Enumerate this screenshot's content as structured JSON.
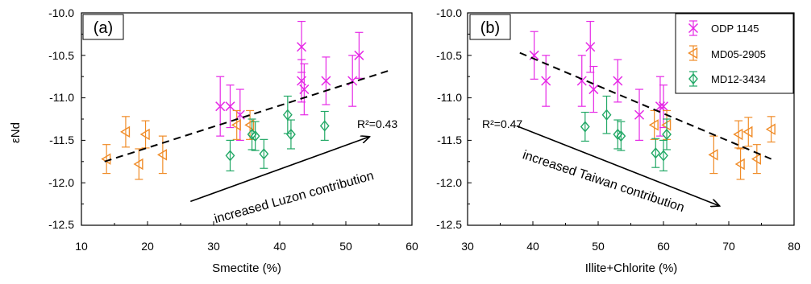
{
  "chart_data": [
    {
      "type": "scatter",
      "panel_label": "(a)",
      "xlabel": "Smectite (%)",
      "ylabel": "εNd",
      "xlim": [
        10,
        60
      ],
      "ylim": [
        -12.5,
        -10.0
      ],
      "xticks": [
        "10",
        "20",
        "30",
        "40",
        "50",
        "60"
      ],
      "yticks": [
        "-10.0",
        "-10.5",
        "-11.0",
        "-11.5",
        "-12.0",
        "-12.5"
      ],
      "series": [
        {
          "name": "ODP 1145",
          "color": "#e629e6",
          "marker": "x",
          "points": [
            {
              "x": 31.0,
              "y": -11.1,
              "err": 0.35
            },
            {
              "x": 32.5,
              "y": -11.1,
              "err": 0.25
            },
            {
              "x": 34.0,
              "y": -11.2,
              "err": 0.3
            },
            {
              "x": 43.3,
              "y": -10.4,
              "err": 0.3
            },
            {
              "x": 43.3,
              "y": -10.8,
              "err": 0.25
            },
            {
              "x": 43.7,
              "y": -10.9,
              "err": 0.3
            },
            {
              "x": 47.0,
              "y": -10.8,
              "err": 0.28
            },
            {
              "x": 51.0,
              "y": -10.8,
              "err": 0.3
            },
            {
              "x": 52.0,
              "y": -10.5,
              "err": 0.27
            }
          ]
        },
        {
          "name": "MD05-2905",
          "color": "#f08c28",
          "marker": "tri-left",
          "points": [
            {
              "x": 13.8,
              "y": -11.72,
              "err": 0.17
            },
            {
              "x": 16.7,
              "y": -11.4,
              "err": 0.18
            },
            {
              "x": 18.7,
              "y": -11.78,
              "err": 0.18
            },
            {
              "x": 19.7,
              "y": -11.43,
              "err": 0.16
            },
            {
              "x": 22.3,
              "y": -11.67,
              "err": 0.22
            },
            {
              "x": 33.5,
              "y": -11.32,
              "err": 0.17
            },
            {
              "x": 35.5,
              "y": -11.32,
              "err": 0.17
            }
          ]
        },
        {
          "name": "MD12-3434",
          "color": "#22a866",
          "marker": "diamond",
          "points": [
            {
              "x": 32.5,
              "y": -11.68,
              "err": 0.18
            },
            {
              "x": 35.8,
              "y": -11.43,
              "err": 0.18
            },
            {
              "x": 36.3,
              "y": -11.45,
              "err": 0.17
            },
            {
              "x": 37.6,
              "y": -11.66,
              "err": 0.17
            },
            {
              "x": 41.2,
              "y": -11.2,
              "err": 0.22
            },
            {
              "x": 41.7,
              "y": -11.43,
              "err": 0.17
            },
            {
              "x": 46.8,
              "y": -11.33,
              "err": 0.17
            }
          ]
        }
      ],
      "fit_line": {
        "x": [
          13.5,
          56.5
        ],
        "y": [
          -11.75,
          -10.68
        ]
      },
      "r2_label": "R²=0.43",
      "annotation": "increased Luzon contribution",
      "arrow": {
        "from": [
          26.5,
          -12.22
        ],
        "to": [
          53.5,
          -11.46
        ]
      }
    },
    {
      "type": "scatter",
      "panel_label": "(b)",
      "xlabel": "Illite+Chlorite (%)",
      "ylabel": "",
      "xlim": [
        30,
        80
      ],
      "ylim": [
        -12.5,
        -10.0
      ],
      "xticks": [
        "30",
        "40",
        "50",
        "60",
        "70",
        "80"
      ],
      "yticks": [
        "-10.0",
        "-10.5",
        "-11.0",
        "-11.5",
        "-12.0",
        "-12.5"
      ],
      "legend_position": "top-right",
      "series": [
        {
          "name": "ODP 1145",
          "color": "#e629e6",
          "marker": "x",
          "points": [
            {
              "x": 40.2,
              "y": -10.5,
              "err": 0.28
            },
            {
              "x": 42.0,
              "y": -10.8,
              "err": 0.3
            },
            {
              "x": 47.5,
              "y": -10.8,
              "err": 0.3
            },
            {
              "x": 48.8,
              "y": -10.4,
              "err": 0.3
            },
            {
              "x": 49.3,
              "y": -10.9,
              "err": 0.27
            },
            {
              "x": 53.0,
              "y": -10.8,
              "err": 0.25
            },
            {
              "x": 56.3,
              "y": -11.2,
              "err": 0.3
            },
            {
              "x": 59.5,
              "y": -11.1,
              "err": 0.35
            },
            {
              "x": 60.0,
              "y": -11.1,
              "err": 0.25
            }
          ]
        },
        {
          "name": "MD05-2905",
          "color": "#f08c28",
          "marker": "tri-left",
          "points": [
            {
              "x": 58.6,
              "y": -11.32,
              "err": 0.17
            },
            {
              "x": 60.5,
              "y": -11.32,
              "err": 0.17
            },
            {
              "x": 67.7,
              "y": -11.67,
              "err": 0.22
            },
            {
              "x": 71.5,
              "y": -11.43,
              "err": 0.16
            },
            {
              "x": 71.8,
              "y": -11.78,
              "err": 0.18
            },
            {
              "x": 73.0,
              "y": -11.4,
              "err": 0.17
            },
            {
              "x": 74.3,
              "y": -11.72,
              "err": 0.17
            },
            {
              "x": 76.5,
              "y": -11.37,
              "err": 0.15
            }
          ]
        },
        {
          "name": "MD12-3434",
          "color": "#22a866",
          "marker": "diamond",
          "points": [
            {
              "x": 48.0,
              "y": -11.34,
              "err": 0.17
            },
            {
              "x": 51.3,
              "y": -11.2,
              "err": 0.22
            },
            {
              "x": 53.0,
              "y": -11.43,
              "err": 0.17
            },
            {
              "x": 53.5,
              "y": -11.45,
              "err": 0.17
            },
            {
              "x": 58.8,
              "y": -11.65,
              "err": 0.17
            },
            {
              "x": 60.0,
              "y": -11.68,
              "err": 0.18
            },
            {
              "x": 60.5,
              "y": -11.43,
              "err": 0.18
            }
          ]
        }
      ],
      "fit_line": {
        "x": [
          38.0,
          76.5
        ],
        "y": [
          -10.47,
          -11.72
        ]
      },
      "r2_label": "R²=0.47",
      "annotation": "increased Taiwan contribution",
      "arrow": {
        "from": [
          37.5,
          -11.33
        ],
        "to": [
          68.5,
          -12.27
        ]
      }
    }
  ]
}
